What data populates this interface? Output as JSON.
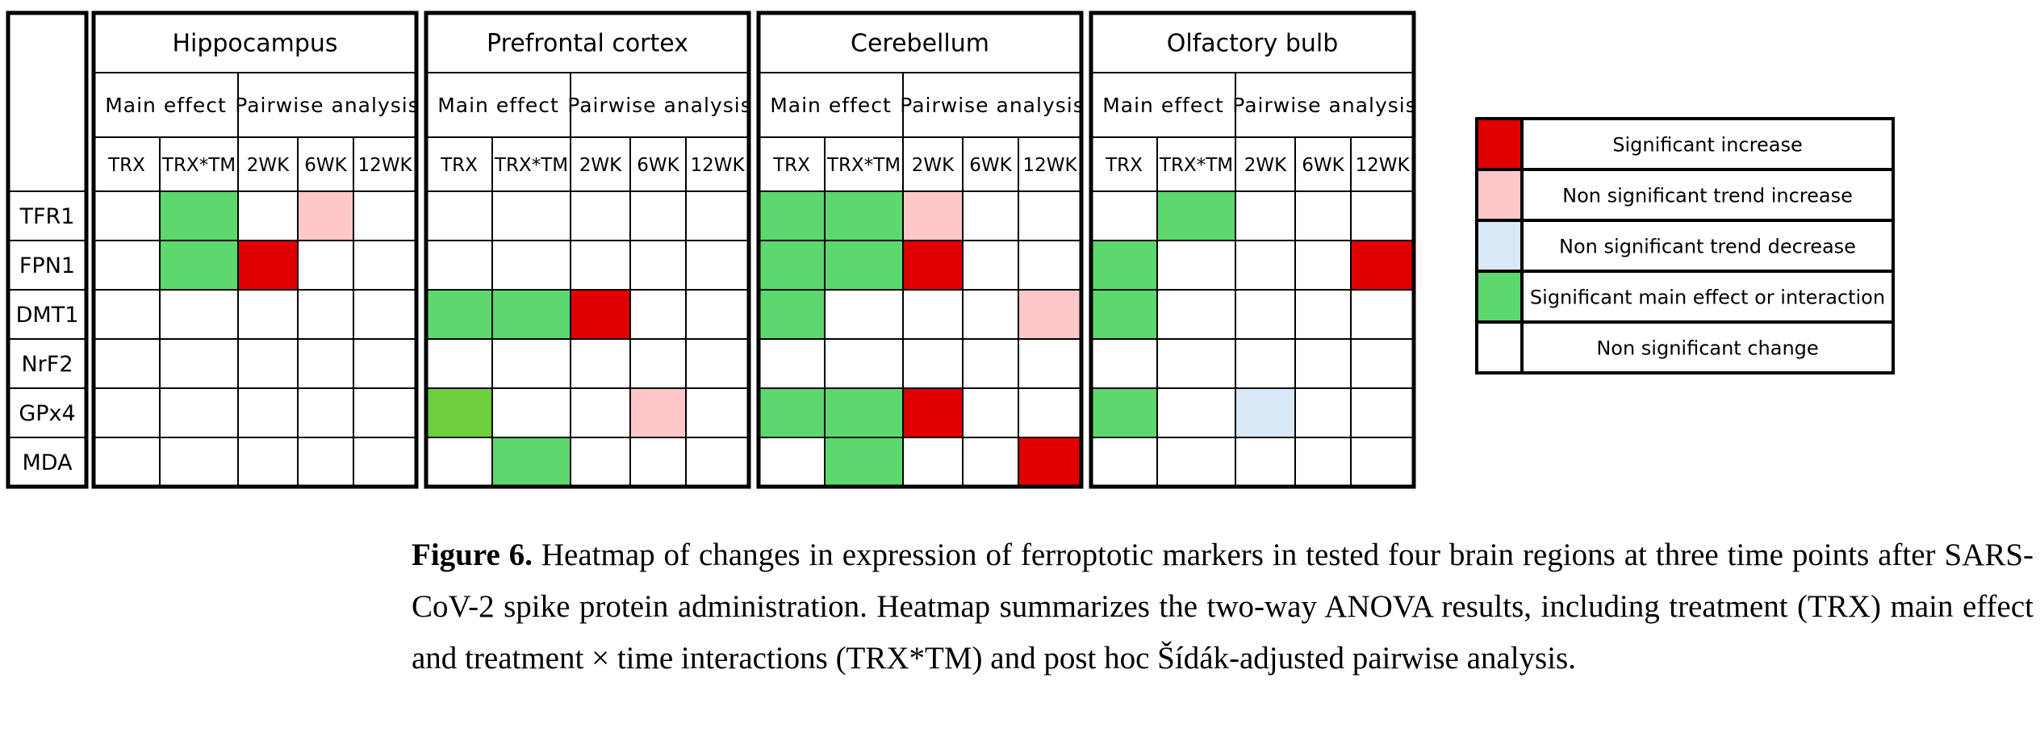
{
  "figure": {
    "regions": [
      "Hippocampus",
      "Prefrontal cortex",
      "Cerebellum",
      "Olfactory bulb"
    ],
    "group_headers": [
      "Main effect",
      "Pairwise analysis"
    ],
    "column_headers": [
      "TRX",
      "TRX*TM",
      "2WK",
      "6WK",
      "12WK"
    ],
    "rows": [
      {
        "label": "TFR1",
        "cells": [
          "#ffffff",
          "#5cd86e",
          "#ffffff",
          "#ffc8c8",
          "#ffffff",
          "#ffffff",
          "#ffffff",
          "#ffffff",
          "#ffffff",
          "#ffffff",
          "#5cd86e",
          "#5cd86e",
          "#ffc8c8",
          "#ffffff",
          "#ffffff",
          "#ffffff",
          "#5cd86e",
          "#ffffff",
          "#ffffff",
          "#ffffff"
        ]
      },
      {
        "label": "FPN1",
        "cells": [
          "#ffffff",
          "#5cd86e",
          "#e00000",
          "#ffffff",
          "#ffffff",
          "#ffffff",
          "#ffffff",
          "#ffffff",
          "#ffffff",
          "#ffffff",
          "#5cd86e",
          "#5cd86e",
          "#e00000",
          "#ffffff",
          "#ffffff",
          "#5cd86e",
          "#ffffff",
          "#ffffff",
          "#ffffff",
          "#e00000"
        ]
      },
      {
        "label": "DMT1",
        "cells": [
          "#ffffff",
          "#ffffff",
          "#ffffff",
          "#ffffff",
          "#ffffff",
          "#5cd86e",
          "#5cd86e",
          "#e00000",
          "#ffffff",
          "#ffffff",
          "#5cd86e",
          "#ffffff",
          "#ffffff",
          "#ffffff",
          "#ffc8c8",
          "#5cd86e",
          "#ffffff",
          "#ffffff",
          "#ffffff",
          "#ffffff"
        ]
      },
      {
        "label": "NrF2",
        "cells": [
          "#ffffff",
          "#ffffff",
          "#ffffff",
          "#ffffff",
          "#ffffff",
          "#ffffff",
          "#ffffff",
          "#ffffff",
          "#ffffff",
          "#ffffff",
          "#ffffff",
          "#ffffff",
          "#ffffff",
          "#ffffff",
          "#ffffff",
          "#ffffff",
          "#ffffff",
          "#ffffff",
          "#ffffff",
          "#ffffff"
        ]
      },
      {
        "label": "GPx4",
        "cells": [
          "#ffffff",
          "#ffffff",
          "#ffffff",
          "#ffffff",
          "#ffffff",
          "#6bd03c",
          "#ffffff",
          "#ffffff",
          "#ffc8c8",
          "#ffffff",
          "#5cd86e",
          "#5cd86e",
          "#e00000",
          "#ffffff",
          "#ffffff",
          "#5cd86e",
          "#ffffff",
          "#d8e8f6",
          "#ffffff",
          "#ffffff"
        ]
      },
      {
        "label": "MDA",
        "cells": [
          "#ffffff",
          "#ffffff",
          "#ffffff",
          "#ffffff",
          "#ffffff",
          "#ffffff",
          "#5cd86e",
          "#ffffff",
          "#ffffff",
          "#ffffff",
          "#ffffff",
          "#5cd86e",
          "#ffffff",
          "#ffffff",
          "#e00000",
          "#ffffff",
          "#ffffff",
          "#ffffff",
          "#ffffff",
          "#ffffff"
        ]
      }
    ],
    "legend": [
      {
        "color": "#e00000",
        "label": "Significant increase"
      },
      {
        "color": "#ffc8c8",
        "label": "Non significant trend increase"
      },
      {
        "color": "#d8e8f6",
        "label": "Non significant trend decrease"
      },
      {
        "color": "#5cd86e",
        "label": "Significant main effect or interaction"
      },
      {
        "color": "#ffffff",
        "label": "Non significant change"
      }
    ],
    "caption": {
      "label": "Figure 6.",
      "text": "Heatmap of changes in expression of ferroptotic markers in tested four brain regions at three time points after SARS-CoV-2 spike protein administration. Heatmap summarizes the two-way ANOVA results, including treatment (TRX) main effect and treatment × time interactions (TRX*TM) and post hoc Šídák-adjusted pairwise analysis."
    }
  }
}
